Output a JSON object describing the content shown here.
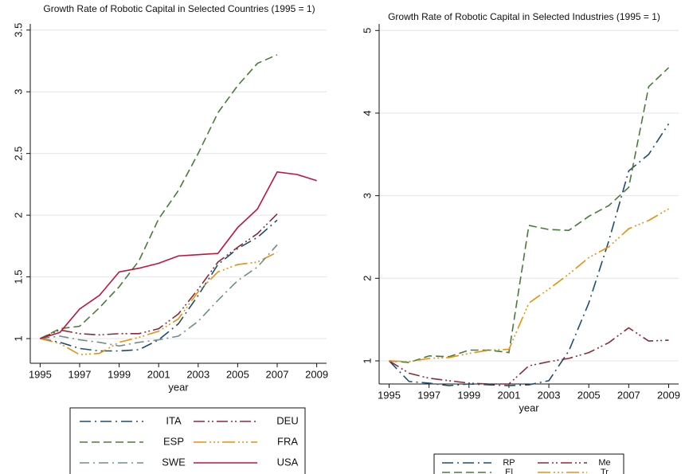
{
  "chart_data": [
    {
      "type": "line",
      "title": "Growth Rate of Robotic Capital in Selected Countries (1995 = 1)",
      "x_label": "year",
      "x": [
        1995,
        1996,
        1997,
        1998,
        1999,
        2000,
        2001,
        2002,
        2003,
        2004,
        2005,
        2006,
        2007,
        2008,
        2009
      ],
      "xlim": [
        1994.5,
        2009.5
      ],
      "xticks": [
        1995,
        1997,
        1999,
        2001,
        2003,
        2005,
        2007,
        2009
      ],
      "ylim": [
        0.8,
        3.55
      ],
      "yticks": [
        1,
        1.5,
        2,
        2.5,
        3,
        3.5
      ],
      "grid": true,
      "series": [
        {
          "name": "ITA",
          "color": "#1f4e6e",
          "dash": "14,5,2,5",
          "values": [
            1.0,
            0.97,
            0.92,
            0.9,
            0.9,
            0.91,
            0.99,
            1.12,
            1.35,
            1.6,
            1.73,
            1.82,
            1.96,
            null,
            null
          ]
        },
        {
          "name": "DEU",
          "color": "#8b2a3a",
          "dash": "14,4,2,3,2,4",
          "values": [
            1.0,
            1.07,
            1.04,
            1.03,
            1.04,
            1.04,
            1.08,
            1.2,
            1.4,
            1.62,
            1.74,
            1.85,
            2.01,
            null,
            null
          ]
        },
        {
          "name": "ESP",
          "color": "#4a7a3a",
          "dash": "10,5",
          "values": [
            1.0,
            1.08,
            1.1,
            1.25,
            1.42,
            1.63,
            1.97,
            2.2,
            2.5,
            2.83,
            3.05,
            3.23,
            3.3,
            null,
            null
          ]
        },
        {
          "name": "FRA",
          "color": "#e8910c",
          "dash": "16,4,2,3,2,3,2,4",
          "values": [
            1.0,
            0.96,
            0.87,
            0.88,
            0.97,
            1.01,
            1.06,
            1.16,
            1.38,
            1.54,
            1.6,
            1.62,
            1.7,
            null,
            null
          ]
        },
        {
          "name": "SWE",
          "color": "#6f8f8a",
          "dash": "12,5,2,5",
          "values": [
            1.0,
            1.02,
            0.99,
            0.97,
            0.94,
            0.97,
            0.99,
            1.02,
            1.14,
            1.31,
            1.47,
            1.58,
            1.76,
            null,
            null
          ]
        },
        {
          "name": "USA",
          "color": "#c0143c",
          "dash": "none",
          "values": [
            1.0,
            1.05,
            1.24,
            1.35,
            1.54,
            1.57,
            1.61,
            1.67,
            1.68,
            1.69,
            1.9,
            2.05,
            2.35,
            2.33,
            2.28
          ]
        }
      ]
    },
    {
      "type": "line",
      "title": "Growth Rate of Robotic Capital in Selected Industries (1995 = 1)",
      "x_label": "year",
      "x": [
        1995,
        1996,
        1997,
        1998,
        1999,
        2000,
        2001,
        2002,
        2003,
        2004,
        2005,
        2006,
        2007,
        2008,
        2009
      ],
      "xlim": [
        1994.5,
        2009.5
      ],
      "xticks": [
        1995,
        1997,
        1999,
        2001,
        2003,
        2005,
        2007,
        2009
      ],
      "ylim": [
        0.72,
        5.08
      ],
      "yticks": [
        1,
        2,
        3,
        4,
        5
      ],
      "grid": true,
      "series": [
        {
          "name": "RP",
          "color": "#1f4e6e",
          "dash": "14,5,2,5",
          "values": [
            1.0,
            0.75,
            0.73,
            0.7,
            0.72,
            0.71,
            0.7,
            0.71,
            0.76,
            1.12,
            1.7,
            2.45,
            3.3,
            3.5,
            3.87
          ]
        },
        {
          "name": "Me",
          "color": "#8b2a3a",
          "dash": "14,4,2,3,2,4",
          "values": [
            1.0,
            0.85,
            0.79,
            0.76,
            0.73,
            0.72,
            0.72,
            0.94,
            0.99,
            1.03,
            1.1,
            1.22,
            1.4,
            1.24,
            1.25
          ]
        },
        {
          "name": "El",
          "color": "#4a7a3a",
          "dash": "10,5",
          "values": [
            1.0,
            0.98,
            1.06,
            1.05,
            1.13,
            1.13,
            1.1,
            2.64,
            2.59,
            2.58,
            2.75,
            2.88,
            3.1,
            4.32,
            4.55
          ]
        },
        {
          "name": "Tr",
          "color": "#e8910c",
          "dash": "16,4,2,3,2,3,2,4",
          "values": [
            1.0,
            0.99,
            1.03,
            1.04,
            1.09,
            1.13,
            1.14,
            1.7,
            1.87,
            2.05,
            2.25,
            2.38,
            2.6,
            2.7,
            2.84
          ]
        }
      ]
    }
  ]
}
